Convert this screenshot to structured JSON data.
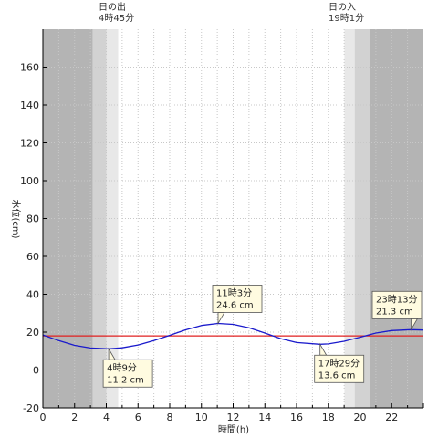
{
  "chart_data": {
    "type": "line",
    "title": "",
    "xlabel": "時間(h)",
    "ylabel": "水位(cm)",
    "xlim": [
      0,
      24
    ],
    "ylim": [
      -20,
      180
    ],
    "x_ticks": [
      0,
      2,
      4,
      6,
      8,
      10,
      12,
      14,
      16,
      18,
      20,
      22
    ],
    "y_ticks": [
      -20,
      0,
      20,
      40,
      60,
      80,
      100,
      120,
      140,
      160
    ],
    "grid": true,
    "sunrise": {
      "label": "日の出",
      "time": "4時45分",
      "hour": 4.75
    },
    "sunset": {
      "label": "日の入",
      "time": "19時1分",
      "hour": 19.0167
    },
    "reference_level": 18,
    "series": [
      {
        "color": "#1a1acc",
        "x": [
          0,
          1,
          2,
          3,
          4.15,
          5,
          6,
          7,
          8,
          9,
          10,
          11.05,
          12,
          13,
          14,
          15,
          16,
          17.48,
          18,
          19,
          20,
          21,
          22,
          23.22,
          24
        ],
        "y": [
          18.5,
          15.5,
          13,
          11.6,
          11.2,
          11.7,
          13.2,
          15.5,
          18.3,
          21.2,
          23.5,
          24.6,
          24.1,
          22.3,
          19.5,
          16.6,
          14.5,
          13.6,
          13.8,
          15.2,
          17.3,
          19.5,
          20.8,
          21.3,
          21.1
        ]
      }
    ],
    "annotations": [
      {
        "time": "4時9分",
        "value": "11.2 cm",
        "x": 4.15,
        "y": 11.2,
        "placement": "below"
      },
      {
        "time": "11時3分",
        "value": "24.6 cm",
        "x": 11.05,
        "y": 24.6,
        "placement": "above"
      },
      {
        "time": "17時29分",
        "value": "13.6 cm",
        "x": 17.48,
        "y": 13.6,
        "placement": "below"
      },
      {
        "time": "23時13分",
        "value": "21.3 cm",
        "x": 23.22,
        "y": 21.3,
        "placement": "above"
      }
    ],
    "colors": {
      "night": "#b4b4b4",
      "dusk": "#d2d2d2",
      "dawn": "#e8e8e8",
      "grid": "#c8c8c8",
      "reference_line": "#e02020",
      "callout_fill": "#fffbe0"
    }
  }
}
